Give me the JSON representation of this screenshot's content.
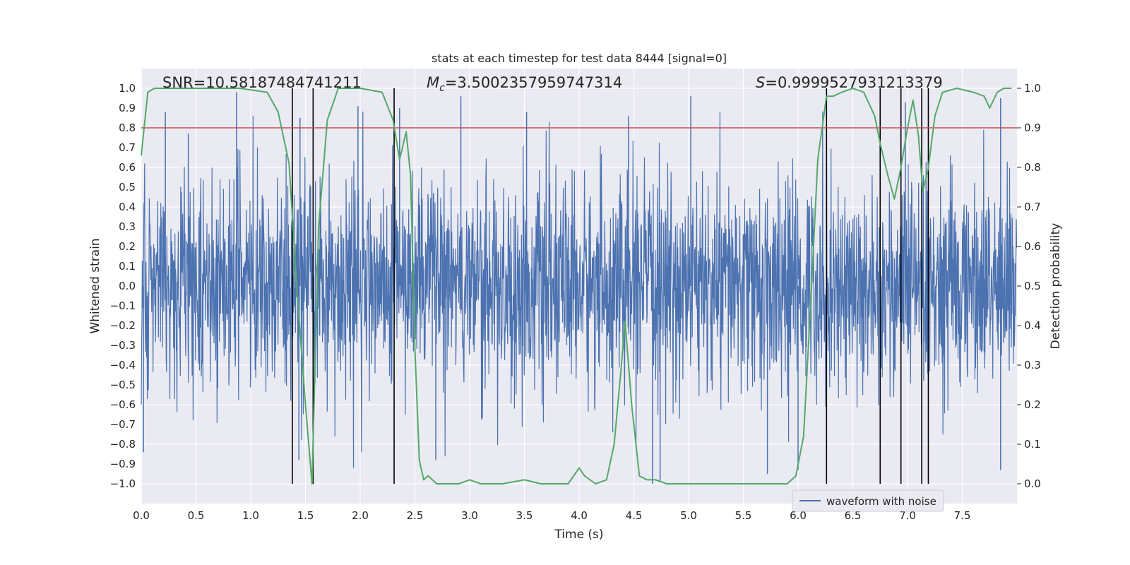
{
  "chart_data": {
    "type": "line",
    "title": "stats at each timestep for test data 8444 [signal=0]",
    "xlabel": "Time (s)",
    "ylabel_left": "Whitened strain",
    "ylabel_right": "Detection probability",
    "xlim": [
      0.0,
      8.0
    ],
    "ylim_left": [
      -1.1,
      1.1
    ],
    "ylim_right": [
      -0.05,
      1.05
    ],
    "x_ticks": [
      "0.0",
      "0.5",
      "1.0",
      "1.5",
      "2.0",
      "2.5",
      "3.0",
      "3.5",
      "4.0",
      "4.5",
      "5.0",
      "5.5",
      "6.0",
      "6.5",
      "7.0",
      "7.5"
    ],
    "x_tick_values": [
      0.0,
      0.5,
      1.0,
      1.5,
      2.0,
      2.5,
      3.0,
      3.5,
      4.0,
      4.5,
      5.0,
      5.5,
      6.0,
      6.5,
      7.0,
      7.5
    ],
    "y_left_ticks": [
      "1.0",
      "0.9",
      "0.8",
      "0.7",
      "0.6",
      "0.5",
      "0.4",
      "0.3",
      "0.2",
      "0.1",
      "0.0",
      "−0.1",
      "−0.2",
      "−0.3",
      "−0.4",
      "−0.5",
      "−0.6",
      "−0.7",
      "−0.8",
      "−0.9",
      "−1.0"
    ],
    "y_left_tick_values": [
      1.0,
      0.9,
      0.8,
      0.7,
      0.6,
      0.5,
      0.4,
      0.3,
      0.2,
      0.1,
      0.0,
      -0.1,
      -0.2,
      -0.3,
      -0.4,
      -0.5,
      -0.6,
      -0.7,
      -0.8,
      -0.9,
      -1.0
    ],
    "y_right_ticks": [
      "1.0",
      "0.9",
      "0.8",
      "0.7",
      "0.6",
      "0.5",
      "0.4",
      "0.3",
      "0.2",
      "0.1",
      "0.0"
    ],
    "y_right_tick_values": [
      1.0,
      0.9,
      0.8,
      0.7,
      0.6,
      0.5,
      0.4,
      0.3,
      0.2,
      0.1,
      0.0
    ],
    "annotations": {
      "snr": "SNR=10.58187484741211",
      "mc_symbol": "M",
      "mc_subscript": "c",
      "mc_value": "=3.5002357959747314",
      "s_symbol": "S",
      "s_value": "=0.9999527931213379"
    },
    "threshold": {
      "value": 0.9,
      "axis": "right",
      "color": "#c44e52"
    },
    "event_markers_x": [
      1.38,
      1.57,
      2.31,
      6.26,
      6.75,
      6.94,
      7.13,
      7.19
    ],
    "waveform": {
      "name": "waveform with noise",
      "color": "#4c72b0",
      "typical_amplitude": 0.42,
      "max_value": 0.98,
      "min_value": -1.0,
      "peaks": [
        {
          "x": 0.22,
          "y": 0.88
        },
        {
          "x": 0.43,
          "y": 0.77
        },
        {
          "x": 0.87,
          "y": 0.98
        },
        {
          "x": 1.45,
          "y": 0.85
        },
        {
          "x": 1.98,
          "y": 0.91
        },
        {
          "x": 2.36,
          "y": 0.9
        },
        {
          "x": 2.92,
          "y": 0.96
        },
        {
          "x": 3.52,
          "y": 0.88
        },
        {
          "x": 4.45,
          "y": 0.86
        },
        {
          "x": 5.02,
          "y": 0.96
        },
        {
          "x": 6.98,
          "y": 0.93
        },
        {
          "x": 7.85,
          "y": 0.95
        },
        {
          "x": 0.02,
          "y": -0.84
        },
        {
          "x": 1.44,
          "y": -0.88
        },
        {
          "x": 2.69,
          "y": -0.88
        },
        {
          "x": 4.67,
          "y": -1.0
        },
        {
          "x": 4.74,
          "y": -0.99
        },
        {
          "x": 5.72,
          "y": -0.95
        },
        {
          "x": 6.0,
          "y": -0.93
        },
        {
          "x": 7.85,
          "y": -0.93
        }
      ]
    },
    "probability": {
      "name": "detection probability",
      "color": "#55a868",
      "x": [
        0.0,
        0.06,
        0.12,
        0.3,
        0.6,
        0.9,
        1.15,
        1.25,
        1.35,
        1.42,
        1.5,
        1.56,
        1.62,
        1.7,
        1.8,
        2.0,
        2.2,
        2.3,
        2.36,
        2.42,
        2.46,
        2.5,
        2.54,
        2.58,
        2.62,
        2.7,
        2.8,
        2.9,
        3.0,
        3.1,
        3.3,
        3.5,
        3.65,
        3.75,
        3.9,
        4.0,
        4.05,
        4.15,
        4.25,
        4.32,
        4.38,
        4.42,
        4.48,
        4.55,
        4.62,
        4.7,
        4.8,
        5.0,
        5.5,
        5.9,
        5.98,
        6.05,
        6.12,
        6.18,
        6.26,
        6.32,
        6.4,
        6.5,
        6.6,
        6.7,
        6.75,
        6.82,
        6.88,
        6.94,
        7.0,
        7.05,
        7.1,
        7.14,
        7.19,
        7.25,
        7.32,
        7.45,
        7.6,
        7.7,
        7.75,
        7.82,
        7.88,
        7.95
      ],
      "y": [
        0.83,
        0.99,
        1.0,
        1.0,
        1.0,
        1.0,
        0.99,
        0.94,
        0.81,
        0.5,
        0.2,
        0.0,
        0.65,
        0.92,
        1.0,
        1.0,
        0.99,
        0.92,
        0.82,
        0.89,
        0.78,
        0.34,
        0.06,
        0.01,
        0.02,
        0.0,
        0.0,
        0.0,
        0.01,
        0.0,
        0.0,
        0.01,
        0.0,
        0.0,
        0.0,
        0.04,
        0.02,
        0.0,
        0.01,
        0.1,
        0.28,
        0.41,
        0.2,
        0.02,
        0.01,
        0.01,
        0.0,
        0.0,
        0.0,
        0.0,
        0.02,
        0.12,
        0.48,
        0.82,
        0.98,
        0.98,
        0.99,
        1.0,
        0.99,
        0.93,
        0.86,
        0.78,
        0.72,
        0.8,
        0.9,
        0.97,
        0.88,
        0.74,
        0.8,
        0.93,
        0.99,
        1.0,
        0.99,
        0.98,
        0.95,
        0.99,
        1.0,
        1.0
      ]
    },
    "legend": {
      "label": "waveform with noise",
      "placement": "lower-right"
    }
  }
}
